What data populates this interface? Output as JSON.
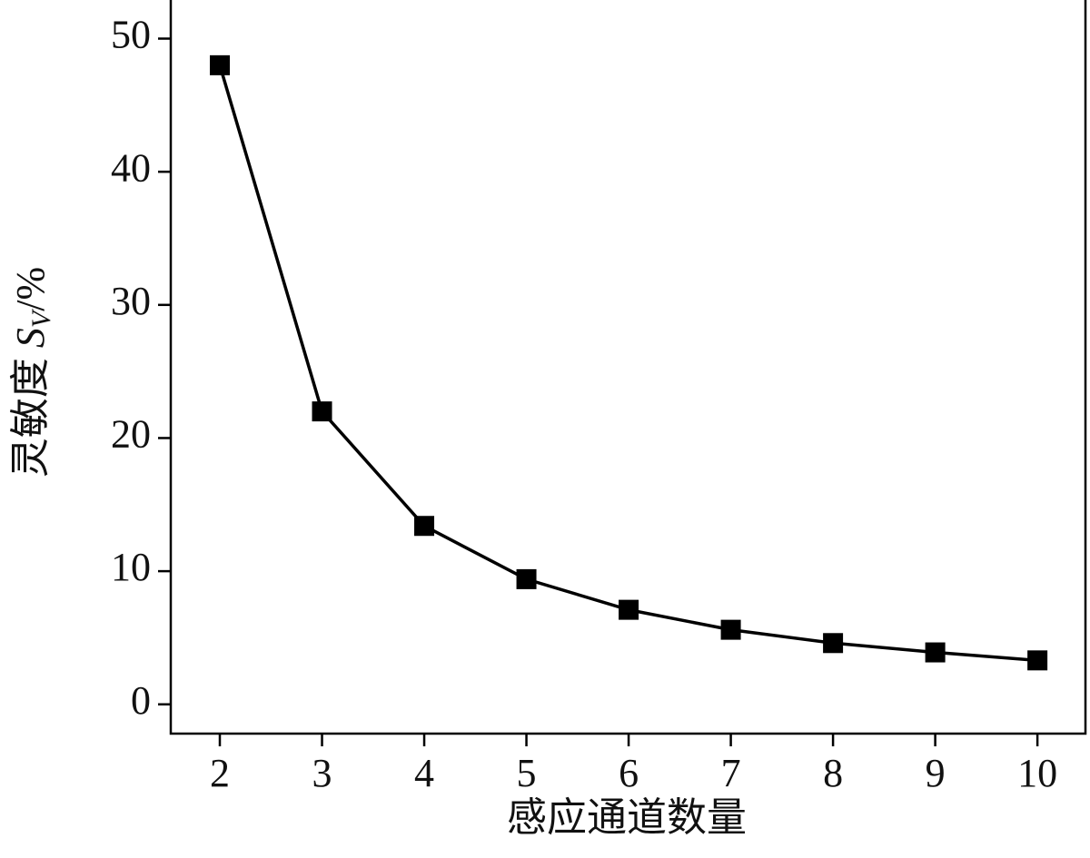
{
  "chart_data": {
    "type": "line",
    "x_label": "感应通道数量",
    "y_label": {
      "prefix": "灵敏度 ",
      "symbol": "S",
      "subscript": "V",
      "suffix": "/%"
    },
    "x": [
      2,
      3,
      4,
      5,
      6,
      7,
      8,
      9,
      10
    ],
    "series": [
      {
        "color": "#000000",
        "values": [
          48.0,
          22.0,
          13.4,
          9.4,
          7.1,
          5.6,
          4.6,
          3.9,
          3.3
        ]
      }
    ],
    "xlim": [
      1.52,
      10.47
    ],
    "ylim": [
      -2.2,
      52.9
    ],
    "xticks": [
      2,
      3,
      4,
      5,
      6,
      7,
      8,
      9,
      10
    ],
    "yticks": [
      0,
      10,
      20,
      30,
      40,
      50
    ],
    "marker": "square",
    "grid": false
  }
}
